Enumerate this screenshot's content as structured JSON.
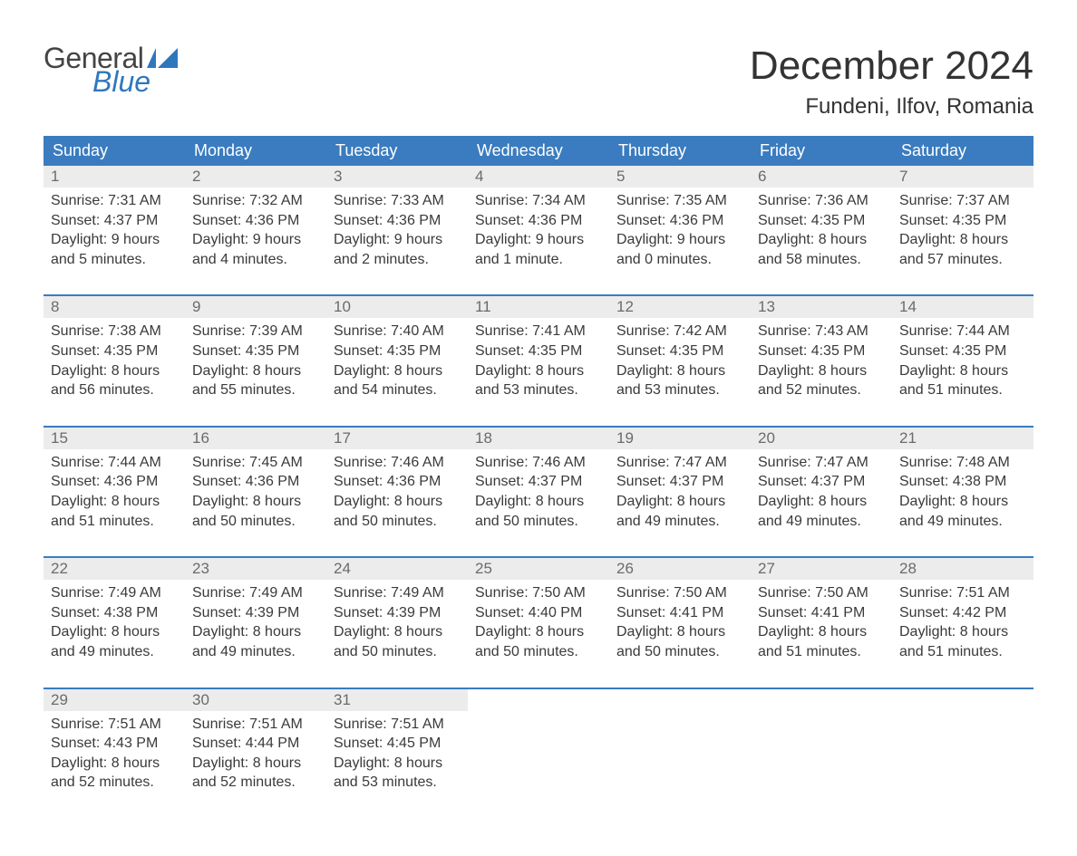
{
  "colors": {
    "header_bg": "#3a7cbf",
    "header_text": "#ffffff",
    "daynum_bg": "#ececec",
    "daynum_text": "#6b6b6b",
    "body_text": "#3a3a3a",
    "page_bg": "#ffffff",
    "logo_blue": "#2f77bd",
    "logo_gray": "#444444"
  },
  "logo": {
    "line1": "General",
    "line2": "Blue"
  },
  "title": "December 2024",
  "location": "Fundeni, Ilfov, Romania",
  "day_headers": [
    "Sunday",
    "Monday",
    "Tuesday",
    "Wednesday",
    "Thursday",
    "Friday",
    "Saturday"
  ],
  "weeks": [
    [
      {
        "n": "1",
        "sr": "Sunrise: 7:31 AM",
        "ss": "Sunset: 4:37 PM",
        "d1": "Daylight: 9 hours",
        "d2": "and 5 minutes."
      },
      {
        "n": "2",
        "sr": "Sunrise: 7:32 AM",
        "ss": "Sunset: 4:36 PM",
        "d1": "Daylight: 9 hours",
        "d2": "and 4 minutes."
      },
      {
        "n": "3",
        "sr": "Sunrise: 7:33 AM",
        "ss": "Sunset: 4:36 PM",
        "d1": "Daylight: 9 hours",
        "d2": "and 2 minutes."
      },
      {
        "n": "4",
        "sr": "Sunrise: 7:34 AM",
        "ss": "Sunset: 4:36 PM",
        "d1": "Daylight: 9 hours",
        "d2": "and 1 minute."
      },
      {
        "n": "5",
        "sr": "Sunrise: 7:35 AM",
        "ss": "Sunset: 4:36 PM",
        "d1": "Daylight: 9 hours",
        "d2": "and 0 minutes."
      },
      {
        "n": "6",
        "sr": "Sunrise: 7:36 AM",
        "ss": "Sunset: 4:35 PM",
        "d1": "Daylight: 8 hours",
        "d2": "and 58 minutes."
      },
      {
        "n": "7",
        "sr": "Sunrise: 7:37 AM",
        "ss": "Sunset: 4:35 PM",
        "d1": "Daylight: 8 hours",
        "d2": "and 57 minutes."
      }
    ],
    [
      {
        "n": "8",
        "sr": "Sunrise: 7:38 AM",
        "ss": "Sunset: 4:35 PM",
        "d1": "Daylight: 8 hours",
        "d2": "and 56 minutes."
      },
      {
        "n": "9",
        "sr": "Sunrise: 7:39 AM",
        "ss": "Sunset: 4:35 PM",
        "d1": "Daylight: 8 hours",
        "d2": "and 55 minutes."
      },
      {
        "n": "10",
        "sr": "Sunrise: 7:40 AM",
        "ss": "Sunset: 4:35 PM",
        "d1": "Daylight: 8 hours",
        "d2": "and 54 minutes."
      },
      {
        "n": "11",
        "sr": "Sunrise: 7:41 AM",
        "ss": "Sunset: 4:35 PM",
        "d1": "Daylight: 8 hours",
        "d2": "and 53 minutes."
      },
      {
        "n": "12",
        "sr": "Sunrise: 7:42 AM",
        "ss": "Sunset: 4:35 PM",
        "d1": "Daylight: 8 hours",
        "d2": "and 53 minutes."
      },
      {
        "n": "13",
        "sr": "Sunrise: 7:43 AM",
        "ss": "Sunset: 4:35 PM",
        "d1": "Daylight: 8 hours",
        "d2": "and 52 minutes."
      },
      {
        "n": "14",
        "sr": "Sunrise: 7:44 AM",
        "ss": "Sunset: 4:35 PM",
        "d1": "Daylight: 8 hours",
        "d2": "and 51 minutes."
      }
    ],
    [
      {
        "n": "15",
        "sr": "Sunrise: 7:44 AM",
        "ss": "Sunset: 4:36 PM",
        "d1": "Daylight: 8 hours",
        "d2": "and 51 minutes."
      },
      {
        "n": "16",
        "sr": "Sunrise: 7:45 AM",
        "ss": "Sunset: 4:36 PM",
        "d1": "Daylight: 8 hours",
        "d2": "and 50 minutes."
      },
      {
        "n": "17",
        "sr": "Sunrise: 7:46 AM",
        "ss": "Sunset: 4:36 PM",
        "d1": "Daylight: 8 hours",
        "d2": "and 50 minutes."
      },
      {
        "n": "18",
        "sr": "Sunrise: 7:46 AM",
        "ss": "Sunset: 4:37 PM",
        "d1": "Daylight: 8 hours",
        "d2": "and 50 minutes."
      },
      {
        "n": "19",
        "sr": "Sunrise: 7:47 AM",
        "ss": "Sunset: 4:37 PM",
        "d1": "Daylight: 8 hours",
        "d2": "and 49 minutes."
      },
      {
        "n": "20",
        "sr": "Sunrise: 7:47 AM",
        "ss": "Sunset: 4:37 PM",
        "d1": "Daylight: 8 hours",
        "d2": "and 49 minutes."
      },
      {
        "n": "21",
        "sr": "Sunrise: 7:48 AM",
        "ss": "Sunset: 4:38 PM",
        "d1": "Daylight: 8 hours",
        "d2": "and 49 minutes."
      }
    ],
    [
      {
        "n": "22",
        "sr": "Sunrise: 7:49 AM",
        "ss": "Sunset: 4:38 PM",
        "d1": "Daylight: 8 hours",
        "d2": "and 49 minutes."
      },
      {
        "n": "23",
        "sr": "Sunrise: 7:49 AM",
        "ss": "Sunset: 4:39 PM",
        "d1": "Daylight: 8 hours",
        "d2": "and 49 minutes."
      },
      {
        "n": "24",
        "sr": "Sunrise: 7:49 AM",
        "ss": "Sunset: 4:39 PM",
        "d1": "Daylight: 8 hours",
        "d2": "and 50 minutes."
      },
      {
        "n": "25",
        "sr": "Sunrise: 7:50 AM",
        "ss": "Sunset: 4:40 PM",
        "d1": "Daylight: 8 hours",
        "d2": "and 50 minutes."
      },
      {
        "n": "26",
        "sr": "Sunrise: 7:50 AM",
        "ss": "Sunset: 4:41 PM",
        "d1": "Daylight: 8 hours",
        "d2": "and 50 minutes."
      },
      {
        "n": "27",
        "sr": "Sunrise: 7:50 AM",
        "ss": "Sunset: 4:41 PM",
        "d1": "Daylight: 8 hours",
        "d2": "and 51 minutes."
      },
      {
        "n": "28",
        "sr": "Sunrise: 7:51 AM",
        "ss": "Sunset: 4:42 PM",
        "d1": "Daylight: 8 hours",
        "d2": "and 51 minutes."
      }
    ],
    [
      {
        "n": "29",
        "sr": "Sunrise: 7:51 AM",
        "ss": "Sunset: 4:43 PM",
        "d1": "Daylight: 8 hours",
        "d2": "and 52 minutes."
      },
      {
        "n": "30",
        "sr": "Sunrise: 7:51 AM",
        "ss": "Sunset: 4:44 PM",
        "d1": "Daylight: 8 hours",
        "d2": "and 52 minutes."
      },
      {
        "n": "31",
        "sr": "Sunrise: 7:51 AM",
        "ss": "Sunset: 4:45 PM",
        "d1": "Daylight: 8 hours",
        "d2": "and 53 minutes."
      },
      null,
      null,
      null,
      null
    ]
  ]
}
